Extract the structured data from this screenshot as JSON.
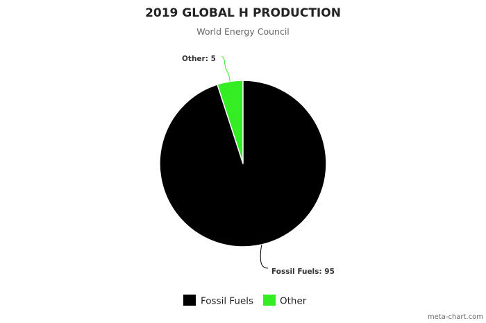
{
  "chart_data": {
    "type": "pie",
    "title": "2019 GLOBAL H PRODUCTION",
    "subtitle": "World Energy Council",
    "categories": [
      "Fossil Fuels",
      "Other"
    ],
    "values": [
      95,
      5
    ],
    "colors": [
      "#000000",
      "#33ee22"
    ],
    "data_labels": [
      "Fossil Fuels: 95",
      "Other: 5"
    ],
    "legend": {
      "position": "bottom",
      "entries": [
        "Fossil Fuels",
        "Other"
      ]
    }
  },
  "credit": "meta-chart.com"
}
